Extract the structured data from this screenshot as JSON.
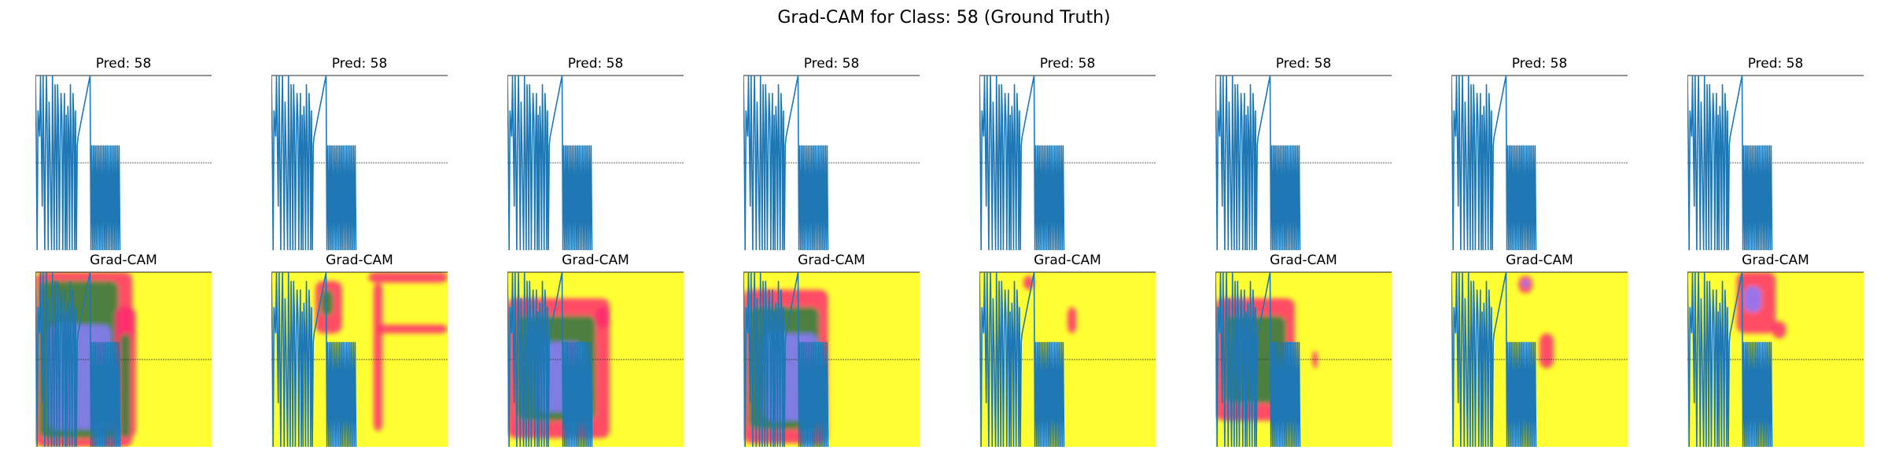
{
  "figure": {
    "title": "Grad-CAM for Class: 58 (Ground Truth)"
  },
  "colors": {
    "signal": "#1f77b4",
    "heat_background": "#ffff33",
    "heat_hot": "#ff2d6e",
    "heat_mid": "#2e8b3a",
    "heat_cool": "#8a7cff"
  },
  "chart_data": {
    "type": "line",
    "columns": 8,
    "rows": [
      {
        "row": "signal",
        "titles": [
          "Pred: 58",
          "Pred: 58",
          "Pred: 58",
          "Pred: 58",
          "Pred: 58",
          "Pred: 58",
          "Pred: 58",
          "Pred: 58"
        ]
      },
      {
        "row": "grad-cam",
        "titles": [
          "Grad-CAM",
          "Grad-CAM",
          "Grad-CAM",
          "Grad-CAM",
          "Grad-CAM",
          "Grad-CAM",
          "Grad-CAM",
          "Grad-CAM"
        ]
      }
    ],
    "ylim": [
      -1,
      1
    ],
    "reference_line_y": 0,
    "axes_visible": false,
    "grid": false,
    "series": [
      {
        "x": [
          0,
          1,
          2,
          3,
          5,
          6,
          8,
          9,
          11,
          12,
          13,
          14,
          15,
          16,
          17,
          19,
          20,
          21,
          22,
          23,
          24,
          25,
          26,
          27,
          28,
          29,
          30,
          31,
          32,
          33,
          34,
          35,
          36,
          37,
          38,
          39,
          40,
          41,
          42,
          43,
          44,
          45,
          46,
          47,
          48,
          49,
          50,
          51,
          52,
          53,
          54,
          55,
          56,
          57,
          58,
          59,
          60,
          61,
          62,
          63,
          64,
          65,
          66,
          67,
          68,
          69,
          70,
          71,
          72,
          73,
          74,
          75,
          76,
          77,
          78,
          79,
          80,
          81,
          82,
          83,
          84,
          85,
          86,
          87,
          88,
          89,
          90,
          91,
          92,
          93,
          94,
          95,
          96,
          97,
          98,
          99
        ],
        "y": [
          1,
          0.25,
          -1,
          0.6,
          0.3,
          1,
          -0.5,
          1,
          -1,
          0.4,
          1,
          0.2,
          -1,
          0.7,
          0.2,
          -1,
          1,
          0.1,
          -1,
          0.9,
          0.3,
          -1,
          0.9,
          0.5,
          -1,
          0.2,
          0.8,
          0.5,
          -1,
          0.25,
          0.8,
          -1,
          0.55,
          -1,
          0.65,
          0.35,
          -1,
          0.9,
          0.2,
          -1,
          0.8,
          0.5,
          -1,
          0.6,
          -1,
          0.2,
          0.3,
          0.35,
          0.4,
          0.45,
          0.5,
          0.55,
          0.6,
          0.65,
          0.7,
          0.75,
          0.8,
          0.85,
          0.9,
          0.95,
          1,
          -1,
          0.2,
          -1,
          0.2,
          -1,
          0.2,
          -1,
          0.2,
          -1,
          0.2,
          -1,
          0.2,
          -1,
          0.2,
          -1,
          0.2,
          -1,
          0.2,
          -1,
          0.2,
          -1,
          0.2,
          -1,
          0.2,
          -1,
          0.2,
          -1,
          0.2,
          -1,
          0.2,
          -1,
          0.2,
          -1,
          0.2,
          -1
        ]
      }
    ]
  }
}
